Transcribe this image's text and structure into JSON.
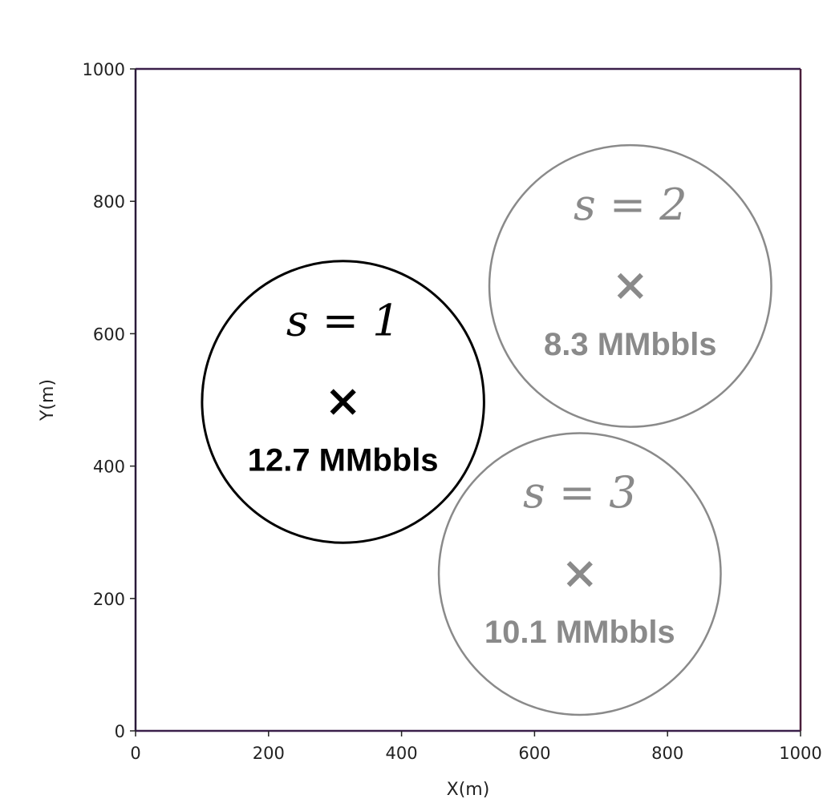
{
  "chart_data": {
    "type": "scatter",
    "xlabel": "X(m)",
    "ylabel": "Y(m)",
    "xlim": [
      0,
      1000
    ],
    "ylim": [
      0,
      1000
    ],
    "x_ticks": [
      "0",
      "200",
      "400",
      "600",
      "800",
      "1000"
    ],
    "y_ticks": [
      "0",
      "200",
      "400",
      "600",
      "800",
      "1000"
    ],
    "grid": false,
    "regions": [
      {
        "label": "s = 1",
        "center_x": 312,
        "center_y": 497,
        "radius": 212,
        "volume": "12.7 MMbbls",
        "color": "#000000"
      },
      {
        "label": "s = 2",
        "center_x": 744,
        "center_y": 672,
        "radius": 212,
        "volume": "8.3 MMbbls",
        "color": "#8a8a8a"
      },
      {
        "label": "s = 3",
        "center_x": 668,
        "center_y": 237,
        "radius": 212,
        "volume": "10.1 MMbbls",
        "color": "#8a8a8a"
      }
    ]
  }
}
